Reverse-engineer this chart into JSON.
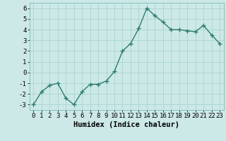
{
  "x": [
    0,
    1,
    2,
    3,
    4,
    5,
    6,
    7,
    8,
    9,
    10,
    11,
    12,
    13,
    14,
    15,
    16,
    17,
    18,
    19,
    20,
    21,
    22,
    23
  ],
  "y": [
    -3,
    -1.8,
    -1.2,
    -1.0,
    -2.4,
    -3.0,
    -1.8,
    -1.1,
    -1.1,
    -0.8,
    0.1,
    2.0,
    2.7,
    4.1,
    6.0,
    5.3,
    4.7,
    4.0,
    4.0,
    3.9,
    3.8,
    4.4,
    3.5,
    2.7
  ],
  "line_color": "#2e7d6e",
  "marker": "+",
  "marker_size": 4,
  "bg_color": "#cce9e7",
  "grid_color": "#aad4d0",
  "xlabel": "Humidex (Indice chaleur)",
  "xlim": [
    -0.5,
    23.5
  ],
  "ylim": [
    -3.5,
    6.5
  ],
  "yticks": [
    -3,
    -2,
    -1,
    0,
    1,
    2,
    3,
    4,
    5,
    6
  ],
  "xticks": [
    0,
    1,
    2,
    3,
    4,
    5,
    6,
    7,
    8,
    9,
    10,
    11,
    12,
    13,
    14,
    15,
    16,
    17,
    18,
    19,
    20,
    21,
    22,
    23
  ],
  "xlabel_fontsize": 7.5,
  "tick_fontsize": 6.5,
  "linewidth": 1.0
}
